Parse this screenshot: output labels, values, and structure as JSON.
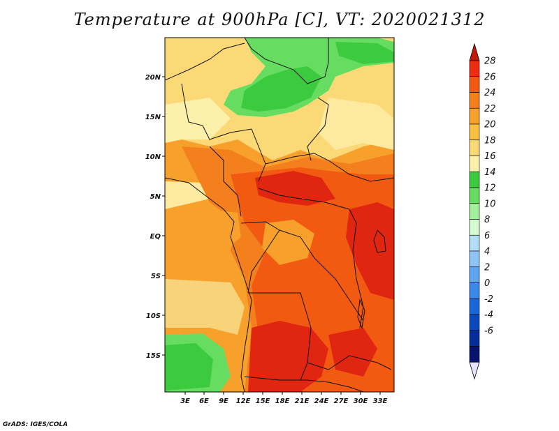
{
  "title": "Temperature at 900hPa [C], VT: 2020021312",
  "credit": "GrADS: IGES/COLA",
  "lat_labels": [
    "20N",
    "15N",
    "10N",
    "5N",
    "EQ",
    "5S",
    "10S",
    "15S"
  ],
  "lon_labels": [
    "3E",
    "6E",
    "9E",
    "12E",
    "15E",
    "18E",
    "21E",
    "24E",
    "27E",
    "30E",
    "33E"
  ],
  "colorbar": {
    "labels": [
      "28",
      "26",
      "24",
      "22",
      "20",
      "18",
      "16",
      "14",
      "12",
      "10",
      "8",
      "6",
      "4",
      "2",
      "0",
      "-2",
      "-4",
      "-6"
    ],
    "colors_top_to_bottom": [
      "#ee2d10",
      "#f25a12",
      "#f47f1d",
      "#f7a12c",
      "#f9c041",
      "#fbd977",
      "#fdf0aa",
      "#3ccb3f",
      "#66dd61",
      "#a2f09b",
      "#d4fbd2",
      "#b4def8",
      "#8fc5f6",
      "#61a4f1",
      "#3c88e6",
      "#1866d7",
      "#0a49bd",
      "#042d97",
      "#07146e"
    ],
    "upper_cap_color": "#c31b0a",
    "lower_cap_color": "#e6e2ff"
  },
  "colors": {
    "ocean": "#f6b843",
    "coast_band": "#f9d37a",
    "cool_green": "#3ccb3f",
    "light_green": "#66dd61",
    "hot_red": "#e02510",
    "deep_orange": "#f25a12",
    "orange": "#f47f1d",
    "pale_yellow": "#fdeaa0",
    "border_line": "#111111"
  }
}
